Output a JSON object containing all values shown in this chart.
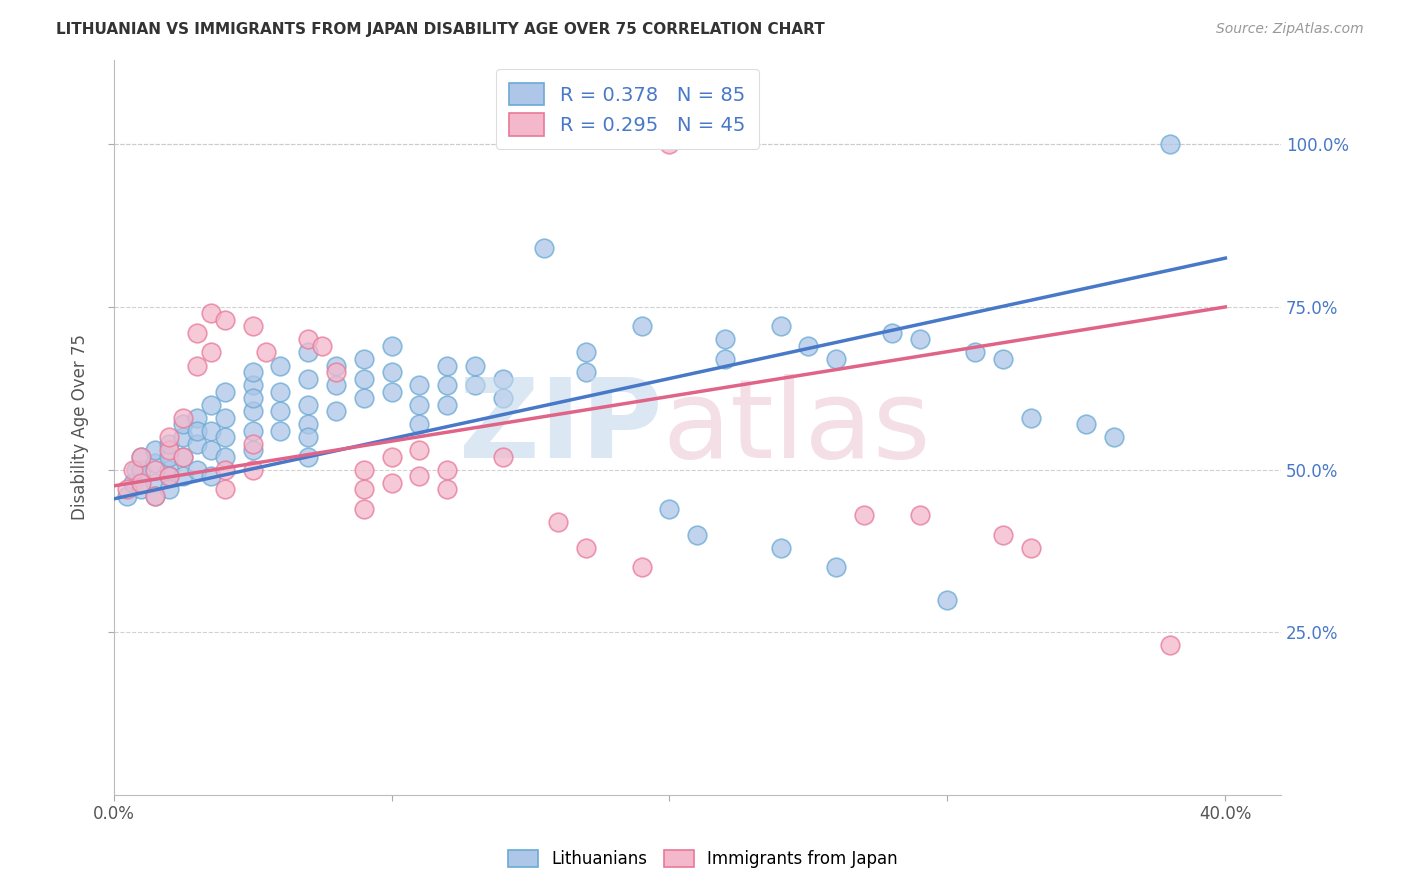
{
  "title": "LITHUANIAN VS IMMIGRANTS FROM JAPAN DISABILITY AGE OVER 75 CORRELATION CHART",
  "source": "Source: ZipAtlas.com",
  "ylabel": "Disability Age Over 75",
  "xlim": [
    0.0,
    0.42
  ],
  "ylim": [
    0.0,
    1.13
  ],
  "ytick_labels": [
    "25.0%",
    "50.0%",
    "75.0%",
    "100.0%"
  ],
  "ytick_vals": [
    0.25,
    0.5,
    0.75,
    1.0
  ],
  "xtick_labels": [
    "0.0%",
    "",
    "",
    "",
    "40.0%"
  ],
  "xtick_vals": [
    0.0,
    0.1,
    0.2,
    0.3,
    0.4
  ],
  "blue_color": "#aec6e8",
  "blue_edge_color": "#6aaad4",
  "pink_color": "#f4b8cc",
  "pink_edge_color": "#e87898",
  "blue_line_color": "#4878c8",
  "pink_line_color": "#e06488",
  "blue_N": 85,
  "pink_N": 45,
  "watermark_zip": "ZIP",
  "watermark_atlas": "atlas",
  "blue_scatter": [
    [
      0.005,
      0.46
    ],
    [
      0.007,
      0.48
    ],
    [
      0.008,
      0.5
    ],
    [
      0.01,
      0.47
    ],
    [
      0.01,
      0.5
    ],
    [
      0.01,
      0.52
    ],
    [
      0.015,
      0.48
    ],
    [
      0.015,
      0.51
    ],
    [
      0.015,
      0.53
    ],
    [
      0.015,
      0.46
    ],
    [
      0.02,
      0.5
    ],
    [
      0.02,
      0.52
    ],
    [
      0.02,
      0.49
    ],
    [
      0.02,
      0.54
    ],
    [
      0.02,
      0.47
    ],
    [
      0.025,
      0.55
    ],
    [
      0.025,
      0.52
    ],
    [
      0.025,
      0.57
    ],
    [
      0.025,
      0.49
    ],
    [
      0.03,
      0.58
    ],
    [
      0.03,
      0.54
    ],
    [
      0.03,
      0.5
    ],
    [
      0.03,
      0.56
    ],
    [
      0.035,
      0.6
    ],
    [
      0.035,
      0.56
    ],
    [
      0.035,
      0.53
    ],
    [
      0.035,
      0.49
    ],
    [
      0.04,
      0.62
    ],
    [
      0.04,
      0.58
    ],
    [
      0.04,
      0.55
    ],
    [
      0.04,
      0.52
    ],
    [
      0.05,
      0.63
    ],
    [
      0.05,
      0.59
    ],
    [
      0.05,
      0.56
    ],
    [
      0.05,
      0.53
    ],
    [
      0.05,
      0.65
    ],
    [
      0.05,
      0.61
    ],
    [
      0.06,
      0.66
    ],
    [
      0.06,
      0.62
    ],
    [
      0.06,
      0.59
    ],
    [
      0.06,
      0.56
    ],
    [
      0.07,
      0.68
    ],
    [
      0.07,
      0.64
    ],
    [
      0.07,
      0.6
    ],
    [
      0.07,
      0.57
    ],
    [
      0.07,
      0.55
    ],
    [
      0.07,
      0.52
    ],
    [
      0.08,
      0.66
    ],
    [
      0.08,
      0.63
    ],
    [
      0.08,
      0.59
    ],
    [
      0.09,
      0.67
    ],
    [
      0.09,
      0.64
    ],
    [
      0.09,
      0.61
    ],
    [
      0.1,
      0.69
    ],
    [
      0.1,
      0.65
    ],
    [
      0.1,
      0.62
    ],
    [
      0.11,
      0.63
    ],
    [
      0.11,
      0.6
    ],
    [
      0.11,
      0.57
    ],
    [
      0.12,
      0.66
    ],
    [
      0.12,
      0.63
    ],
    [
      0.12,
      0.6
    ],
    [
      0.13,
      0.66
    ],
    [
      0.13,
      0.63
    ],
    [
      0.14,
      0.64
    ],
    [
      0.14,
      0.61
    ],
    [
      0.155,
      0.84
    ],
    [
      0.17,
      0.68
    ],
    [
      0.17,
      0.65
    ],
    [
      0.19,
      0.72
    ],
    [
      0.22,
      0.7
    ],
    [
      0.22,
      0.67
    ],
    [
      0.24,
      0.72
    ],
    [
      0.25,
      0.69
    ],
    [
      0.26,
      0.67
    ],
    [
      0.28,
      0.71
    ],
    [
      0.29,
      0.7
    ],
    [
      0.31,
      0.68
    ],
    [
      0.32,
      0.67
    ],
    [
      0.33,
      0.58
    ],
    [
      0.35,
      0.57
    ],
    [
      0.36,
      0.55
    ],
    [
      0.38,
      1.0
    ],
    [
      0.2,
      0.44
    ],
    [
      0.21,
      0.4
    ],
    [
      0.24,
      0.38
    ],
    [
      0.26,
      0.35
    ],
    [
      0.3,
      0.3
    ]
  ],
  "pink_scatter": [
    [
      0.005,
      0.47
    ],
    [
      0.007,
      0.5
    ],
    [
      0.01,
      0.48
    ],
    [
      0.01,
      0.52
    ],
    [
      0.015,
      0.46
    ],
    [
      0.015,
      0.5
    ],
    [
      0.02,
      0.53
    ],
    [
      0.02,
      0.49
    ],
    [
      0.02,
      0.55
    ],
    [
      0.025,
      0.58
    ],
    [
      0.025,
      0.52
    ],
    [
      0.03,
      0.71
    ],
    [
      0.03,
      0.66
    ],
    [
      0.035,
      0.74
    ],
    [
      0.035,
      0.68
    ],
    [
      0.04,
      0.73
    ],
    [
      0.04,
      0.5
    ],
    [
      0.04,
      0.47
    ],
    [
      0.05,
      0.72
    ],
    [
      0.05,
      0.54
    ],
    [
      0.05,
      0.5
    ],
    [
      0.055,
      0.68
    ],
    [
      0.07,
      0.7
    ],
    [
      0.075,
      0.69
    ],
    [
      0.08,
      0.65
    ],
    [
      0.09,
      0.5
    ],
    [
      0.09,
      0.47
    ],
    [
      0.09,
      0.44
    ],
    [
      0.1,
      0.52
    ],
    [
      0.1,
      0.48
    ],
    [
      0.11,
      0.53
    ],
    [
      0.11,
      0.49
    ],
    [
      0.12,
      0.5
    ],
    [
      0.12,
      0.47
    ],
    [
      0.14,
      0.52
    ],
    [
      0.16,
      0.42
    ],
    [
      0.17,
      0.38
    ],
    [
      0.19,
      0.35
    ],
    [
      0.2,
      1.0
    ],
    [
      0.27,
      0.43
    ],
    [
      0.29,
      0.43
    ],
    [
      0.32,
      0.4
    ],
    [
      0.33,
      0.38
    ],
    [
      0.38,
      0.23
    ]
  ],
  "blue_line": {
    "x0": 0.0,
    "y0": 0.455,
    "x1": 0.4,
    "y1": 0.825
  },
  "pink_line": {
    "x0": 0.0,
    "y0": 0.475,
    "x1": 0.4,
    "y1": 0.75
  }
}
